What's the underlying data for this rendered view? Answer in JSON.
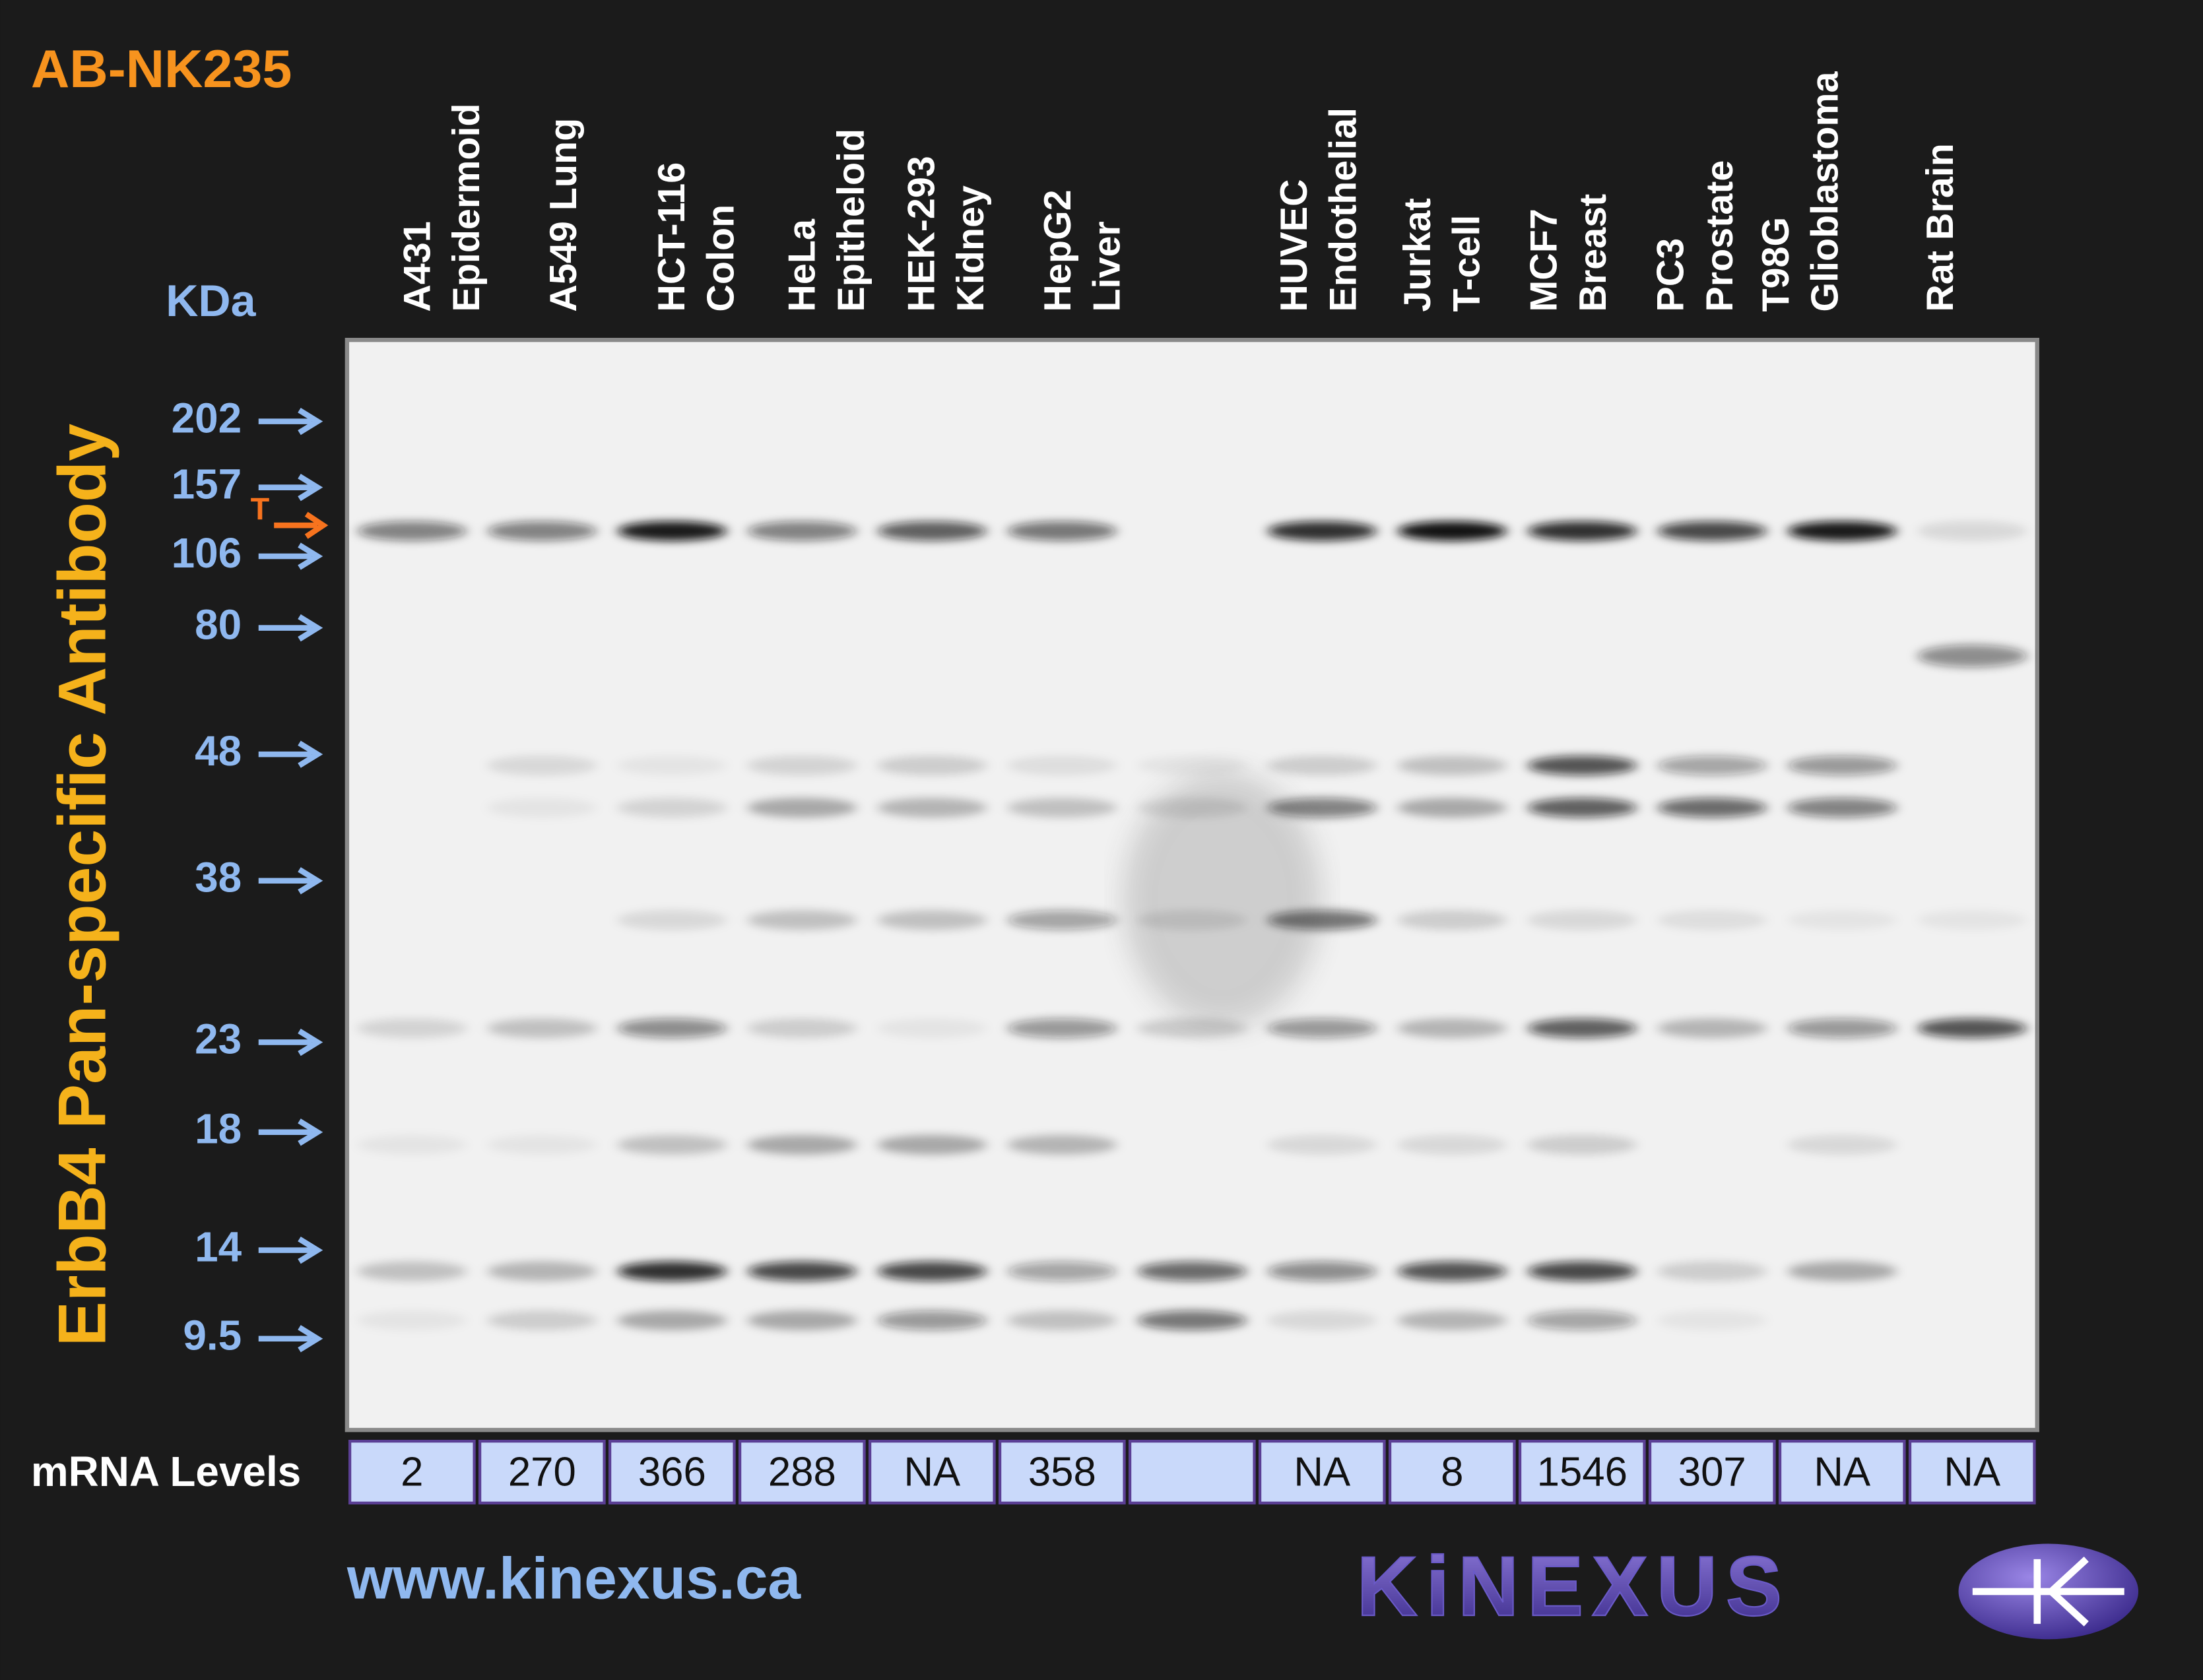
{
  "product_code": "AB-NK235",
  "antibody": "ErbB4 Pan-specific Antibody",
  "kda_label": "KDa",
  "target_marker": "T",
  "markers": [
    "202",
    "157",
    "106",
    "80",
    "48",
    "38",
    "23",
    "18",
    "14",
    "9.5"
  ],
  "mrna_label": "mRNA Levels",
  "lanes": [
    {
      "label": [
        "A431",
        "Epidermoid"
      ],
      "mrna": 2
    },
    {
      "label": [
        "A549 Lung"
      ],
      "mrna": 270
    },
    {
      "label": [
        "HCT-116",
        "Colon"
      ],
      "mrna": 366
    },
    {
      "label": [
        "HeLa",
        "Epitheloid"
      ],
      "mrna": 288
    },
    {
      "label": [
        "HEK-293",
        "Kidney"
      ],
      "mrna": "NA"
    },
    {
      "label": [
        "HepG2",
        "Liver"
      ],
      "mrna": 358
    },
    {
      "label": null,
      "mrna": null
    },
    {
      "label": [
        "HUVEC",
        "Endothelial"
      ],
      "mrna": "NA"
    },
    {
      "label": [
        "Jurkat",
        "T-cell"
      ],
      "mrna": 8
    },
    {
      "label": [
        "MCF7",
        "Breast"
      ],
      "mrna": 1546
    },
    {
      "label": [
        "PC3",
        "Prostate"
      ],
      "mrna": 307
    },
    {
      "label": [
        "T98G",
        "Glioblastoma"
      ],
      "mrna": "NA"
    },
    {
      "label": [
        "Rat Brain"
      ],
      "mrna": "NA"
    }
  ],
  "website": "www.kinexus.ca",
  "logo": "KiNEXUS"
}
